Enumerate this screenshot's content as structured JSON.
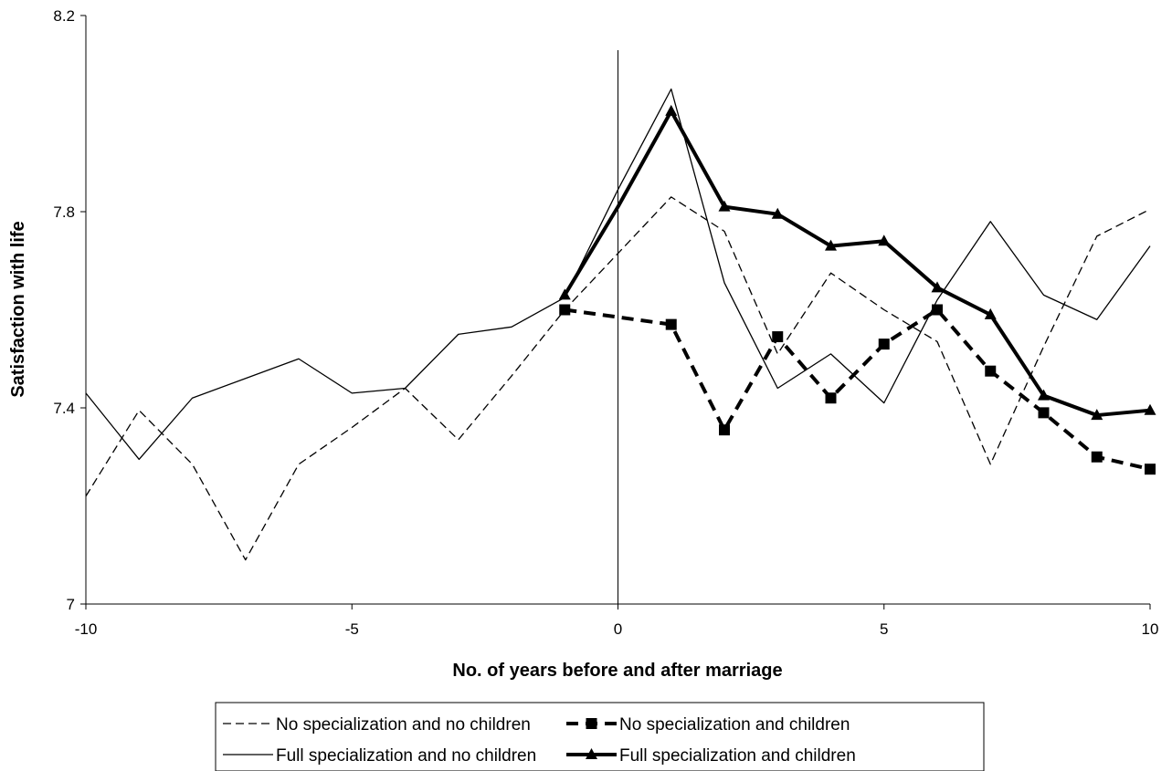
{
  "chart_data": {
    "type": "line",
    "title": "",
    "xlabel": "No. of years before and after marriage",
    "ylabel": "Satisfaction with life",
    "xlim": [
      -10,
      10
    ],
    "ylim": [
      7,
      8.2
    ],
    "x_ticks": [
      "-10",
      "-5",
      "0",
      "5",
      "10"
    ],
    "y_ticks": [
      "7",
      "7.4",
      "7.8",
      "8.2"
    ],
    "x_tick_values": [
      -10,
      -5,
      0,
      5,
      10
    ],
    "y_tick_values": [
      7,
      7.4,
      7.8,
      8.2
    ],
    "reference_line_x": 0,
    "grid": false,
    "legend_position": "bottom",
    "series": [
      {
        "name": "No specialization and no children",
        "style": "dashed-thin",
        "marker": "none",
        "color": "#000000",
        "x": [
          -10,
          -9,
          -8,
          -7,
          -6,
          -5,
          -4,
          -3,
          -2,
          -1,
          0,
          1,
          2,
          3,
          4,
          5,
          6,
          7,
          8,
          9,
          10
        ],
        "y": [
          7.22,
          7.395,
          7.285,
          7.09,
          7.285,
          7.36,
          7.44,
          7.335,
          7.465,
          7.6,
          7.715,
          7.83,
          7.76,
          7.51,
          7.675,
          7.6,
          7.535,
          7.285,
          7.525,
          7.75,
          7.805
        ]
      },
      {
        "name": "No specialization and children",
        "style": "dashed-thick",
        "marker": "square",
        "color": "#000000",
        "x": [
          -1,
          1,
          2,
          3,
          4,
          5,
          6,
          7,
          8,
          9,
          10
        ],
        "y": [
          7.6,
          7.57,
          7.355,
          7.545,
          7.42,
          7.53,
          7.6,
          7.475,
          7.39,
          7.3,
          7.275
        ]
      },
      {
        "name": "Full specialization and no children",
        "style": "solid-thin",
        "marker": "none",
        "color": "#000000",
        "x": [
          -10,
          -9,
          -8,
          -7,
          -6,
          -5,
          -4,
          -3,
          -2,
          -1,
          0,
          1,
          2,
          3,
          4,
          5,
          6,
          7,
          8,
          9,
          10
        ],
        "y": [
          7.43,
          7.295,
          7.42,
          7.46,
          7.5,
          7.43,
          7.44,
          7.55,
          7.565,
          7.625,
          7.845,
          8.05,
          7.655,
          7.44,
          7.51,
          7.41,
          7.62,
          7.78,
          7.63,
          7.58,
          7.73
        ]
      },
      {
        "name": "Full specialization and children",
        "style": "solid-thick",
        "marker": "triangle",
        "color": "#000000",
        "x": [
          -1,
          0,
          1,
          2,
          3,
          4,
          5,
          6,
          7,
          8,
          9,
          10
        ],
        "y": [
          7.63,
          7.81,
          8.005,
          7.81,
          7.795,
          7.73,
          7.74,
          7.645,
          7.59,
          7.425,
          7.385,
          7.395
        ]
      }
    ]
  }
}
